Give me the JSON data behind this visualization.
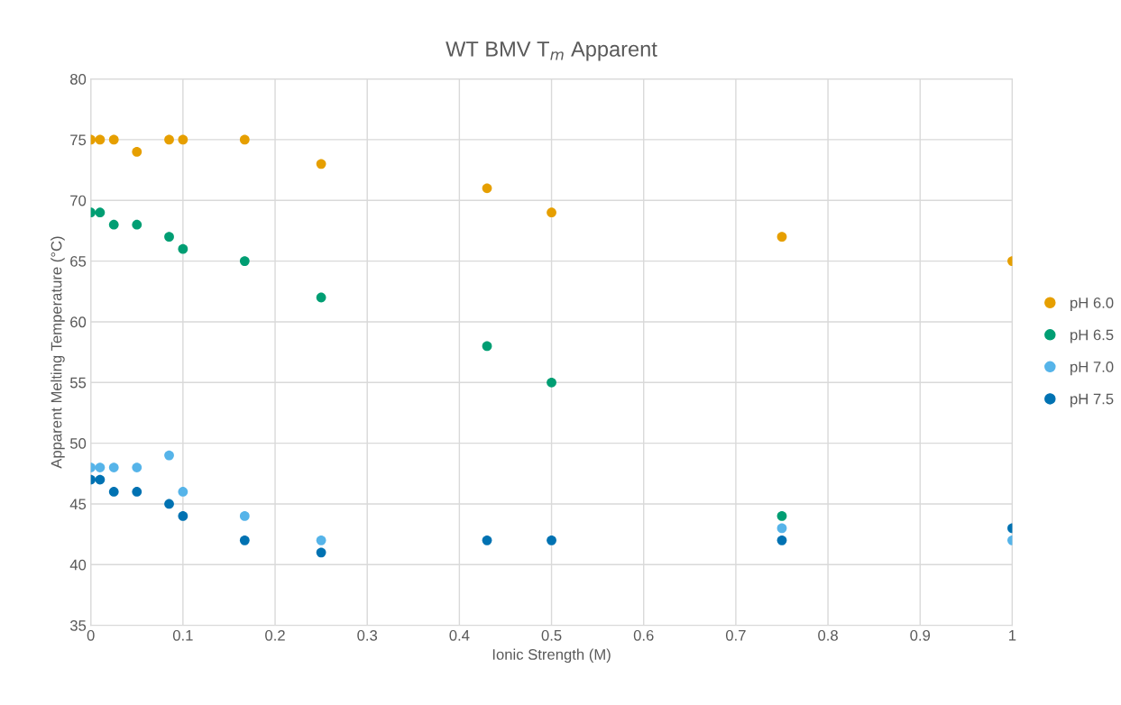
{
  "chart_data": {
    "type": "scatter",
    "title": "WT BMV T$_{m}$ Apparent",
    "xlabel": "Ionic Strength (M)",
    "ylabel": "Apparent Melting Temperature (°C)",
    "x": [
      0,
      0.01,
      0.025,
      0.05,
      0.085,
      0.1,
      0.167,
      0.25,
      0.43,
      0.5,
      0.75,
      1
    ],
    "series": [
      {
        "name": "pH 6.0",
        "color": "#e69f00",
        "values": [
          75,
          75,
          75,
          74,
          75,
          75,
          75,
          73,
          71,
          69,
          67,
          65
        ]
      },
      {
        "name": "pH 6.5",
        "color": "#009e73",
        "values": [
          69,
          69,
          68,
          68,
          67,
          66,
          65,
          62,
          58,
          55,
          44,
          null
        ]
      },
      {
        "name": "pH 7.0",
        "color": "#56b4e9",
        "values": [
          48,
          48,
          48,
          48,
          49,
          46,
          44,
          42,
          null,
          null,
          43,
          42
        ]
      },
      {
        "name": "pH 7.5",
        "color": "#0072b2",
        "values": [
          47,
          47,
          46,
          46,
          45,
          44,
          42,
          41,
          42,
          42,
          42,
          43
        ]
      }
    ],
    "xlim": [
      0,
      1
    ],
    "xticks": [
      0,
      0.1,
      0.2,
      0.3,
      0.4,
      0.5,
      0.6,
      0.7,
      0.8,
      0.9,
      1
    ],
    "ylim": [
      35,
      80
    ],
    "yticks": [
      35,
      40,
      45,
      50,
      55,
      60,
      65,
      70,
      75,
      80
    ],
    "grid": true,
    "legend": "right",
    "marker": "circle"
  }
}
